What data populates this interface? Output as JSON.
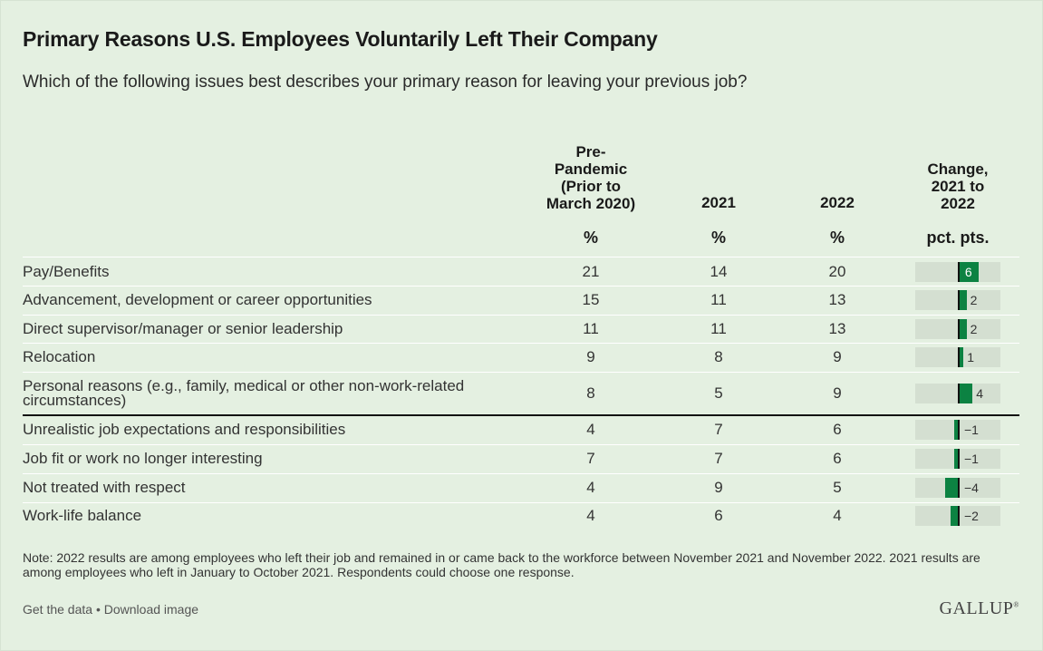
{
  "title": "Primary Reasons U.S. Employees Voluntarily Left Their Company",
  "subtitle": "Which of the following issues best describes your primary reason for leaving your previous job?",
  "columns": {
    "pre": "Pre-\nPandemic\n(Prior to\nMarch 2020)",
    "y2021": "2021",
    "y2022": "2022",
    "change": "Change,\n2021 to\n2022",
    "unit_pre": "%",
    "unit_2021": "%",
    "unit_2022": "%",
    "unit_change": "pct. pts."
  },
  "chart_data": {
    "type": "table",
    "rows": [
      {
        "label": "Pay/Benefits",
        "pre": "21",
        "y2021": "14",
        "y2022": "20",
        "change": 6,
        "change_label": "6"
      },
      {
        "label": "Advancement, development or career opportunities",
        "pre": "15",
        "y2021": "11",
        "y2022": "13",
        "change": 2,
        "change_label": "2"
      },
      {
        "label": "Direct supervisor/manager or senior leadership",
        "pre": "11",
        "y2021": "11",
        "y2022": "13",
        "change": 2,
        "change_label": "2"
      },
      {
        "label": "Relocation",
        "pre": "9",
        "y2021": "8",
        "y2022": "9",
        "change": 1,
        "change_label": "1"
      },
      {
        "label": "Personal reasons (e.g., family, medical or other non-work-related circumstances)",
        "pre": "8",
        "y2021": "5",
        "y2022": "9",
        "change": 4,
        "change_label": "4"
      },
      {
        "label": "Unrealistic job expectations and responsibilities",
        "pre": "4",
        "y2021": "7",
        "y2022": "6",
        "change": -1,
        "change_label": "−1"
      },
      {
        "label": "Job fit or work no longer interesting",
        "pre": "7",
        "y2021": "7",
        "y2022": "6",
        "change": -1,
        "change_label": "−1"
      },
      {
        "label": "Not treated with respect",
        "pre": "4",
        "y2021": "9",
        "y2022": "5",
        "change": -4,
        "change_label": "−4"
      },
      {
        "label": "Work-life balance",
        "pre": "4",
        "y2021": "6",
        "y2022": "4",
        "change": -2,
        "change_label": "−2"
      }
    ],
    "bar_color": "#0c8242"
  },
  "note": "Note: 2022 results are among employees who left their job and remained in or came back to the workforce between November 2021 and November 2022. 2021 results are among employees who left in January to October 2021. Respondents could choose one response.",
  "footer": {
    "get_data": "Get the data",
    "separator": " • ",
    "download": "Download image",
    "logo": "GALLUP"
  }
}
